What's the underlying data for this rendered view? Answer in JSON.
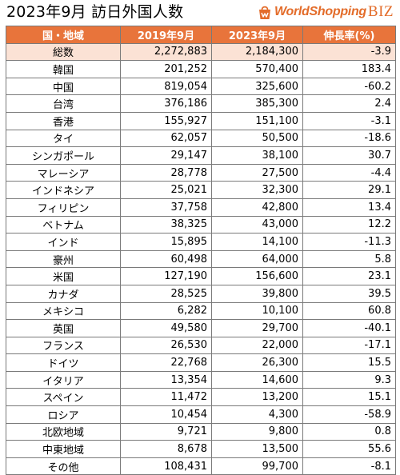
{
  "title": "2023年9月 訪日外国人数",
  "logo": {
    "text": "WorldShopping",
    "biz": "BIZ",
    "accent": "#e36c2a"
  },
  "colors": {
    "header_bg": "#e8743b",
    "total_row_bg": "#fbe2d5"
  },
  "table": {
    "headers": [
      "国・地域",
      "2019年9月",
      "2023年9月",
      "伸長率(%)"
    ],
    "rows": [
      {
        "country": "総数",
        "y2019": "2,272,883",
        "y2023": "2,184,300",
        "growth": "-3.9"
      },
      {
        "country": "韓国",
        "y2019": "201,252",
        "y2023": "570,400",
        "growth": "183.4"
      },
      {
        "country": "中国",
        "y2019": "819,054",
        "y2023": "325,600",
        "growth": "-60.2"
      },
      {
        "country": "台湾",
        "y2019": "376,186",
        "y2023": "385,300",
        "growth": "2.4"
      },
      {
        "country": "香港",
        "y2019": "155,927",
        "y2023": "151,100",
        "growth": "-3.1"
      },
      {
        "country": "タイ",
        "y2019": "62,057",
        "y2023": "50,500",
        "growth": "-18.6"
      },
      {
        "country": "シンガポール",
        "y2019": "29,147",
        "y2023": "38,100",
        "growth": "30.7"
      },
      {
        "country": "マレーシア",
        "y2019": "28,778",
        "y2023": "27,500",
        "growth": "-4.4"
      },
      {
        "country": "インドネシア",
        "y2019": "25,021",
        "y2023": "32,300",
        "growth": "29.1"
      },
      {
        "country": "フィリピン",
        "y2019": "37,758",
        "y2023": "42,800",
        "growth": "13.4"
      },
      {
        "country": "ベトナム",
        "y2019": "38,325",
        "y2023": "43,000",
        "growth": "12.2"
      },
      {
        "country": "インド",
        "y2019": "15,895",
        "y2023": "14,100",
        "growth": "-11.3"
      },
      {
        "country": "豪州",
        "y2019": "60,498",
        "y2023": "64,000",
        "growth": "5.8"
      },
      {
        "country": "米国",
        "y2019": "127,190",
        "y2023": "156,600",
        "growth": "23.1"
      },
      {
        "country": "カナダ",
        "y2019": "28,525",
        "y2023": "39,800",
        "growth": "39.5"
      },
      {
        "country": "メキシコ",
        "y2019": "6,282",
        "y2023": "10,100",
        "growth": "60.8"
      },
      {
        "country": "英国",
        "y2019": "49,580",
        "y2023": "29,700",
        "growth": "-40.1"
      },
      {
        "country": "フランス",
        "y2019": "26,530",
        "y2023": "22,000",
        "growth": "-17.1"
      },
      {
        "country": "ドイツ",
        "y2019": "22,768",
        "y2023": "26,300",
        "growth": "15.5"
      },
      {
        "country": "イタリア",
        "y2019": "13,354",
        "y2023": "14,600",
        "growth": "9.3"
      },
      {
        "country": "スペイン",
        "y2019": "11,472",
        "y2023": "13,200",
        "growth": "15.1"
      },
      {
        "country": "ロシア",
        "y2019": "10,454",
        "y2023": "4,300",
        "growth": "-58.9"
      },
      {
        "country": "北欧地域",
        "y2019": "9,721",
        "y2023": "9,800",
        "growth": "0.8"
      },
      {
        "country": "中東地域",
        "y2019": "8,678",
        "y2023": "13,500",
        "growth": "55.6"
      },
      {
        "country": "その他",
        "y2019": "108,431",
        "y2023": "99,700",
        "growth": "-8.1"
      }
    ]
  }
}
